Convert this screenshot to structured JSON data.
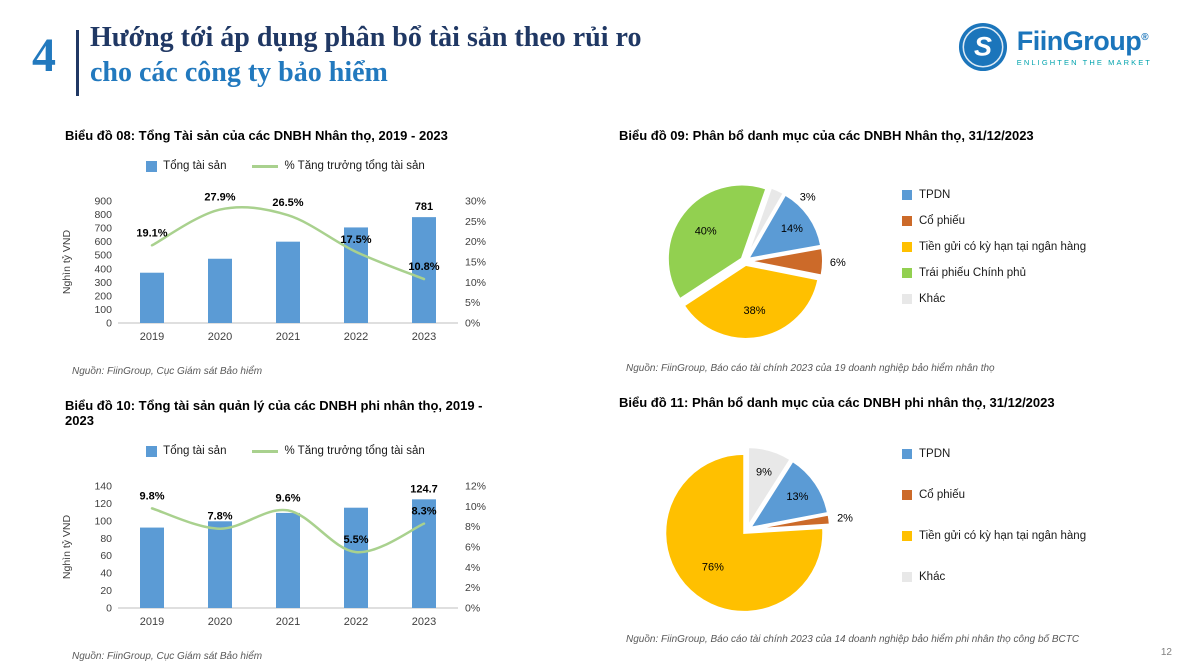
{
  "slide": {
    "number": "4",
    "title_line1": "Hướng tới áp dụng phân bổ tài sản theo rủi ro",
    "title_line2": "cho các công ty bảo hiểm",
    "page_number": "12"
  },
  "logo": {
    "name": "FiinGroup",
    "registered": "®",
    "tagline": "ENLIGHTEN THE MARKET"
  },
  "colors": {
    "bar": "#5B9BD5",
    "line": "#A9D18E",
    "accent_navy": "#203864",
    "accent_blue": "#2279BE",
    "pie_blue": "#5B9BD5",
    "pie_orange": "#CC6A29",
    "pie_yellow": "#FFC000",
    "pie_green": "#92D050",
    "pie_gray": "#E8E8E8"
  },
  "chart_data": [
    {
      "id": "chart08",
      "type": "bar-line",
      "title": "Biểu đồ 08: Tổng Tài sản của các DNBH Nhân thọ, 2019 - 2023",
      "categories": [
        "2019",
        "2020",
        "2021",
        "2022",
        "2023"
      ],
      "series": [
        {
          "name": "Tổng tài sản",
          "type": "bar",
          "axis": "left",
          "values": [
            371,
            474,
            600,
            705,
            781
          ]
        },
        {
          "name": "% Tăng trưởng tổng tài sản",
          "type": "line",
          "axis": "right",
          "values": [
            19.1,
            27.9,
            26.5,
            17.5,
            10.8
          ]
        }
      ],
      "bar_labels": [
        null,
        null,
        null,
        null,
        "781"
      ],
      "line_labels": [
        "19.1%",
        "27.9%",
        "26.5%",
        "17.5%",
        "10.8%"
      ],
      "ylabel": "Nghìn tỷ VND",
      "left_axis": {
        "min": 0,
        "max": 900,
        "step": 100
      },
      "right_axis": {
        "min": 0,
        "max": 30,
        "step": 5,
        "suffix": "%"
      },
      "grid": false,
      "legend_position": "top",
      "source": "Nguồn: FiinGroup, Cục Giám sát Bảo hiểm"
    },
    {
      "id": "chart09",
      "type": "pie",
      "title": "Biểu đồ 09: Phân bổ danh mục của các DNBH Nhân thọ, 31/12/2023",
      "rotation": 30,
      "legend_position": "right",
      "slices": [
        {
          "label": "TPDN",
          "value": 14,
          "pct": "14%",
          "color_key": "pie_blue",
          "label_inside": true
        },
        {
          "label": "Cổ phiếu",
          "value": 6,
          "pct": "6%",
          "color_key": "pie_orange",
          "label_inside": false
        },
        {
          "label": "Tiền gửi có kỳ hạn tại ngân hàng",
          "value": 38,
          "pct": "38%",
          "color_key": "pie_yellow",
          "label_inside": true
        },
        {
          "label": "Trái phiếu Chính phủ",
          "value": 40,
          "pct": "40%",
          "color_key": "pie_green",
          "label_inside": true
        },
        {
          "label": "Khác",
          "value": 3,
          "pct": "3%",
          "color_key": "pie_gray",
          "label_inside": false,
          "label_dx": 24,
          "label_dy": 20
        }
      ],
      "source": "Nguồn: FiinGroup, Báo cáo tài chính 2023 của 19 doanh nghiệp bảo hiểm nhân thọ"
    },
    {
      "id": "chart10",
      "type": "bar-line",
      "title": "Biểu đồ 10: Tổng tài sản quản lý của các DNBH phi nhân thọ, 2019 - 2023",
      "categories": [
        "2019",
        "2020",
        "2021",
        "2022",
        "2023"
      ],
      "series": [
        {
          "name": "Tổng tài sản",
          "type": "bar",
          "axis": "left",
          "values": [
            92.3,
            99.5,
            109.1,
            115.1,
            124.7
          ]
        },
        {
          "name": "% Tăng trưởng tổng tài sản",
          "type": "line",
          "axis": "right",
          "values": [
            9.8,
            7.8,
            9.6,
            5.5,
            8.3
          ]
        }
      ],
      "bar_labels": [
        null,
        null,
        null,
        null,
        "124.7"
      ],
      "line_labels": [
        "9.8%",
        "7.8%",
        "9.6%",
        "5.5%",
        "8.3%"
      ],
      "ylabel": "Nghìn tỷ VND",
      "left_axis": {
        "min": 0,
        "max": 140,
        "step": 20
      },
      "right_axis": {
        "min": 0,
        "max": 12,
        "step": 2,
        "suffix": "%"
      },
      "grid": false,
      "legend_position": "top",
      "source": "Nguồn: FiinGroup, Cục Giám sát Bảo hiểm"
    },
    {
      "id": "chart11",
      "type": "pie",
      "title": "Biểu đồ 11: Phân bổ danh mục của các DNBH phi nhân thọ, 31/12/2023",
      "rotation": 32.4,
      "legend_position": "right",
      "slices": [
        {
          "label": "TPDN",
          "value": 13,
          "pct": "13%",
          "color_key": "pie_blue",
          "label_inside": true
        },
        {
          "label": "Cổ phiếu",
          "value": 2,
          "pct": "2%",
          "color_key": "pie_orange",
          "label_inside": false
        },
        {
          "label": "Tiền gửi có kỳ hạn tại ngân hàng",
          "value": 76,
          "pct": "76%",
          "color_key": "pie_yellow",
          "label_inside": true
        },
        {
          "label": "Khác",
          "value": 9,
          "pct": "9%",
          "color_key": "pie_gray",
          "label_inside": true
        }
      ],
      "source": "Nguồn: FiinGroup, Báo cáo tài chính 2023 của 14 doanh nghiệp bảo hiểm phi nhân thọ công bố BCTC"
    }
  ]
}
